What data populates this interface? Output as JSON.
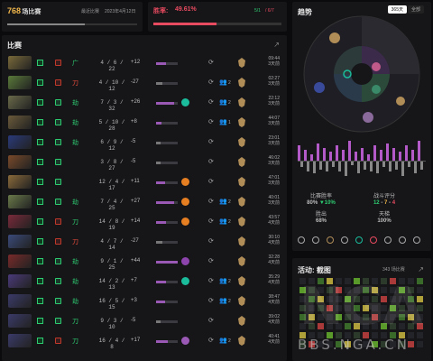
{
  "top_left": {
    "score": "768",
    "score_label": "场比赛",
    "sub": "最近比赛",
    "date": "2023年4月12日"
  },
  "top_right": {
    "label": "胜率:",
    "winrate": "49.61%",
    "w": "5/1",
    "l": "/ 6/7",
    "winrate_fraction": 0.4961
  },
  "matches": {
    "title": "比赛",
    "rows": [
      {
        "hero_color": "#7a6a3a",
        "res": "L",
        "res_color": "#c0392b",
        "role": "广",
        "role_color": "#2ecc71",
        "kda": "4 / 6 / 22",
        "val": "+12",
        "bar": 0.45,
        "bar_color": "#9b59b6",
        "icon_color": "",
        "people": "",
        "medal_color": "#b08d57",
        "dur": "09:44",
        "dur2": "3天前"
      },
      {
        "hero_color": "#5a7a3a",
        "res": "W",
        "res_color": "#c0392b",
        "role": "刀",
        "role_color": "#e74c3c",
        "kda": "4 / 10 / 12",
        "val": "-27",
        "bar": 0.3,
        "bar_color": "#777",
        "icon_color": "",
        "people": "2",
        "medal_color": "#b08d57",
        "dur": "02:27",
        "dur2": "3天前"
      },
      {
        "hero_color": "#6a6a4a",
        "res": "L",
        "res_color": "#2ecc71",
        "role": "劫",
        "role_color": "#2ecc71",
        "kda": "7 / 3 / 32",
        "val": "+26",
        "bar": 0.85,
        "bar_color": "#9b59b6",
        "icon_color": "#1abc9c",
        "people": "2",
        "medal_color": "#b08d57",
        "dur": "22:12",
        "dur2": "3天前"
      },
      {
        "hero_color": "#6a5a3a",
        "res": "W",
        "res_color": "#2ecc71",
        "role": "劫",
        "role_color": "#2ecc71",
        "kda": "5 / 10 / 28",
        "val": "+8",
        "bar": 0.25,
        "bar_color": "#9b59b6",
        "icon_color": "",
        "people": "1",
        "medal_color": "#b08d57",
        "dur": "44:07",
        "dur2": "3天前"
      },
      {
        "hero_color": "#2a3a7a",
        "res": "L",
        "res_color": "#2ecc71",
        "role": "劫",
        "role_color": "#2ecc71",
        "kda": "6 / 9 / 12",
        "val": "-5",
        "bar": 0.2,
        "bar_color": "#777",
        "icon_color": "",
        "people": "",
        "medal_color": "#b08d57",
        "dur": "23:01",
        "dur2": "3天前"
      },
      {
        "hero_color": "#7a4a2a",
        "res": "W",
        "res_color": "#2ecc71",
        "role": "",
        "role_color": "#2ecc71",
        "kda": "3 / 8 / 27",
        "val": "-5",
        "bar": 0.2,
        "bar_color": "#777",
        "icon_color": "",
        "people": "",
        "medal_color": "#b08d57",
        "dur": "46:02",
        "dur2": "3天前"
      },
      {
        "hero_color": "#8a6a3a",
        "res": "W",
        "res_color": "#2ecc71",
        "role": "",
        "role_color": "#2ecc71",
        "kda": "12 / 4 / 17",
        "val": "+11",
        "bar": 0.4,
        "bar_color": "#9b59b6",
        "icon_color": "#e67e22",
        "people": "",
        "medal_color": "#b08d57",
        "dur": "47:01",
        "dur2": "3天前"
      },
      {
        "hero_color": "#6a7a4a",
        "res": "L",
        "res_color": "#2ecc71",
        "role": "劫",
        "role_color": "#2ecc71",
        "kda": "7 / 4 / 25",
        "val": "+27",
        "bar": 0.85,
        "bar_color": "#9b59b6",
        "icon_color": "#e67e22",
        "people": "2",
        "medal_color": "#b08d57",
        "dur": "40:01",
        "dur2": "3天前"
      },
      {
        "hero_color": "#7a2a3a",
        "res": "W",
        "res_color": "#c0392b",
        "role": "刀",
        "role_color": "#2ecc71",
        "kda": "14 / 8 / 19",
        "val": "+14",
        "bar": 0.45,
        "bar_color": "#9b59b6",
        "icon_color": "#e67e22",
        "people": "2",
        "medal_color": "#b08d57",
        "dur": "43:57",
        "dur2": "4天前"
      },
      {
        "hero_color": "#3a4a7a",
        "res": "L",
        "res_color": "#c0392b",
        "role": "刀",
        "role_color": "#e74c3c",
        "kda": "4 / 7 / 14",
        "val": "-27",
        "bar": 0.3,
        "bar_color": "#777",
        "icon_color": "",
        "people": "",
        "medal_color": "#b08d57",
        "dur": "30:10",
        "dur2": "4天前"
      },
      {
        "hero_color": "#7a2a2a",
        "res": "W",
        "res_color": "#2ecc71",
        "role": "劫",
        "role_color": "#2ecc71",
        "kda": "9 / 1 / 25",
        "val": "+44",
        "bar": 1.0,
        "bar_color": "#9b59b6",
        "icon_color": "#8e44ad",
        "people": "",
        "medal_color": "#b08d57",
        "dur": "32:28",
        "dur2": "4天前"
      },
      {
        "hero_color": "#4a3a7a",
        "res": "W",
        "res_color": "#2ecc71",
        "role": "劫",
        "role_color": "#2ecc71",
        "kda": "14 / 2 / 13",
        "val": "+7",
        "bar": 0.45,
        "bar_color": "#9b59b6",
        "icon_color": "#1abc9c",
        "people": "2",
        "medal_color": "#b08d57",
        "dur": "35:29",
        "dur2": "4天前"
      },
      {
        "hero_color": "#3a3a6a",
        "res": "L",
        "res_color": "#2ecc71",
        "role": "劫",
        "role_color": "#2ecc71",
        "kda": "16 / 5 / 15",
        "val": "+3",
        "bar": 0.4,
        "bar_color": "#9b59b6",
        "icon_color": "",
        "people": "2",
        "medal_color": "#b08d57",
        "dur": "38:47",
        "dur2": "4天前"
      },
      {
        "hero_color": "#3a3a6a",
        "res": "W",
        "res_color": "#2ecc71",
        "role": "刀",
        "role_color": "#2ecc71",
        "kda": "9 / 3 / 10",
        "val": "-5",
        "bar": 0.2,
        "bar_color": "#777",
        "icon_color": "",
        "people": "",
        "medal_color": "#b08d57",
        "dur": "39:02",
        "dur2": "4天前"
      },
      {
        "hero_color": "#3a3a6a",
        "res": "L",
        "res_color": "#c0392b",
        "role": "刀",
        "role_color": "#2ecc71",
        "kda": "16 / 4 / 8",
        "val": "+17",
        "bar": 0.55,
        "bar_color": "#9b59b6",
        "icon_color": "#9b59b6",
        "people": "2",
        "medal_color": "#b08d57",
        "dur": "40:41",
        "dur2": "4天前"
      }
    ]
  },
  "trends": {
    "title": "趋势",
    "tabs": [
      "365天",
      "全部"
    ],
    "stats": [
      {
        "label": "比赛胜率",
        "value": "80%",
        "extra": "▼10%",
        "extra_color": "#2ecc71"
      },
      {
        "label": "战斗评分",
        "value": "12",
        "value2": "7",
        "value3": "4",
        "extra": "",
        "extra_color": ""
      },
      {
        "label": "胜出",
        "value": "68%",
        "extra": "",
        "extra_color": ""
      },
      {
        "label": "天梯",
        "value": "100%",
        "extra": "",
        "extra_color": ""
      }
    ],
    "bars": [
      [
        0.7,
        0.3
      ],
      [
        0.5,
        0.5
      ],
      [
        0.3,
        0.6
      ],
      [
        0.8,
        0.4
      ],
      [
        0.6,
        0.5
      ],
      [
        0.4,
        0.3
      ],
      [
        0.7,
        0.5
      ],
      [
        0.5,
        0.7
      ],
      [
        0.9,
        0.2
      ],
      [
        0.4,
        0.6
      ],
      [
        0.6,
        0.4
      ],
      [
        0.3,
        0.5
      ],
      [
        0.7,
        0.6
      ],
      [
        0.5,
        0.3
      ],
      [
        0.8,
        0.5
      ],
      [
        0.6,
        0.4
      ],
      [
        0.4,
        0.7
      ],
      [
        0.7,
        0.3
      ],
      [
        0.5,
        0.6
      ],
      [
        0.9,
        0.4
      ]
    ]
  },
  "activity": {
    "title": "活动: 截图",
    "count": "343 场比赛"
  },
  "watermark": {
    "logo": "NGA",
    "url": "BBS.NGA.CN"
  }
}
